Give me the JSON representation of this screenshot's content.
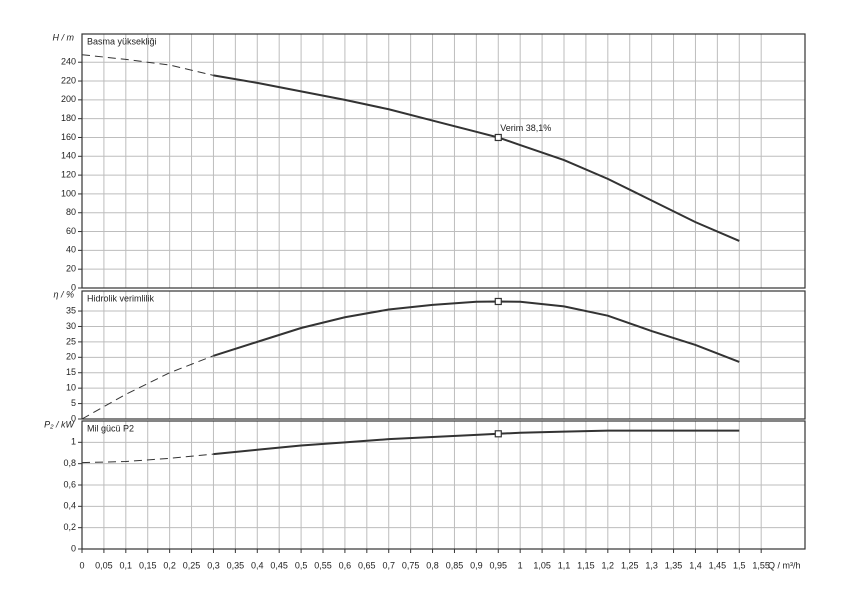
{
  "x_axis": {
    "label": "Q / m³/h",
    "xlim": [
      0,
      1.65
    ],
    "xticks": [
      0,
      {
        "value": 0.05,
        "label": "0,05"
      },
      {
        "value": 0.1,
        "label": "0,1"
      },
      {
        "value": 0.15,
        "label": "0,15"
      },
      {
        "value": 0.2,
        "label": "0,2"
      },
      {
        "value": 0.25,
        "label": "0,25"
      },
      {
        "value": 0.3,
        "label": "0,3"
      },
      {
        "value": 0.35,
        "label": "0,35"
      },
      {
        "value": 0.4,
        "label": "0,4"
      },
      {
        "value": 0.45,
        "label": "0,45"
      },
      {
        "value": 0.5,
        "label": "0,5"
      },
      {
        "value": 0.55,
        "label": "0,55"
      },
      {
        "value": 0.6,
        "label": "0,6"
      },
      {
        "value": 0.65,
        "label": "0,65"
      },
      {
        "value": 0.7,
        "label": "0,7"
      },
      {
        "value": 0.75,
        "label": "0,75"
      },
      {
        "value": 0.8,
        "label": "0,8"
      },
      {
        "value": 0.85,
        "label": "0,85"
      },
      {
        "value": 0.9,
        "label": "0,9"
      },
      {
        "value": 0.95,
        "label": "0,95"
      },
      1,
      {
        "value": 1.05,
        "label": "1,05"
      },
      {
        "value": 1.1,
        "label": "1,1"
      },
      {
        "value": 1.15,
        "label": "1,15"
      },
      {
        "value": 1.2,
        "label": "1,2"
      },
      {
        "value": 1.25,
        "label": "1,25"
      },
      {
        "value": 1.3,
        "label": "1,3"
      },
      {
        "value": 1.35,
        "label": "1,35"
      },
      {
        "value": 1.4,
        "label": "1,4"
      },
      {
        "value": 1.45,
        "label": "1,45"
      },
      {
        "value": 1.5,
        "label": "1,5"
      },
      {
        "value": 1.55,
        "label": "1,55"
      }
    ]
  },
  "operating_point_q": 0.95,
  "chart_data": [
    {
      "type": "line",
      "ylabel": "H / m",
      "title": "Basma yüksekliği",
      "annotation": "Verim  38,1%",
      "ylim": [
        0,
        270
      ],
      "yticks": [
        0,
        20,
        40,
        60,
        80,
        100,
        120,
        140,
        160,
        180,
        200,
        220,
        240
      ],
      "grid": true,
      "color": "#333333",
      "segments": [
        {
          "style": "dashed",
          "x": [
            0,
            0.1,
            0.2,
            0.3
          ],
          "values": [
            248,
            243,
            237,
            226
          ]
        },
        {
          "style": "solid",
          "x": [
            0.3,
            0.4,
            0.5,
            0.6,
            0.7,
            0.8,
            0.9,
            0.95,
            1.0,
            1.1,
            1.2,
            1.3,
            1.4,
            1.5
          ],
          "values": [
            226,
            218,
            209,
            200,
            190,
            178,
            166,
            160,
            152,
            136,
            116,
            93,
            70,
            50
          ]
        }
      ]
    },
    {
      "type": "line",
      "ylabel": "η / %",
      "title": "Hidrolik verimlilik",
      "ylim": [
        0,
        41.5
      ],
      "yticks": [
        0,
        5,
        10,
        15,
        20,
        25,
        30,
        35
      ],
      "grid": true,
      "color": "#333333",
      "segments": [
        {
          "style": "dashed",
          "x": [
            0,
            0.1,
            0.2,
            0.3
          ],
          "values": [
            0,
            8,
            15,
            20.5
          ]
        },
        {
          "style": "solid",
          "x": [
            0.3,
            0.4,
            0.5,
            0.6,
            0.7,
            0.8,
            0.9,
            0.95,
            1.0,
            1.1,
            1.2,
            1.3,
            1.4,
            1.5
          ],
          "values": [
            20.5,
            25,
            29.5,
            33,
            35.5,
            37,
            38,
            38.1,
            38,
            36.5,
            33.5,
            28.5,
            24,
            18.5
          ]
        }
      ]
    },
    {
      "type": "line",
      "ylabel": "P₂ / kW",
      "title": "Mil gücü P2",
      "ylim": [
        0,
        1.2
      ],
      "yticks": [
        0,
        {
          "value": 0.2,
          "label": "0,2"
        },
        {
          "value": 0.4,
          "label": "0,4"
        },
        {
          "value": 0.6,
          "label": "0,6"
        },
        {
          "value": 0.8,
          "label": "0,8"
        },
        1
      ],
      "grid": true,
      "color": "#333333",
      "segments": [
        {
          "style": "dashed",
          "x": [
            0,
            0.1,
            0.2,
            0.3
          ],
          "values": [
            0.81,
            0.82,
            0.85,
            0.89
          ]
        },
        {
          "style": "solid",
          "x": [
            0.3,
            0.4,
            0.5,
            0.6,
            0.7,
            0.8,
            0.9,
            0.95,
            1.0,
            1.1,
            1.2,
            1.3,
            1.4,
            1.5
          ],
          "values": [
            0.89,
            0.93,
            0.97,
            1.0,
            1.03,
            1.05,
            1.07,
            1.08,
            1.09,
            1.1,
            1.11,
            1.11,
            1.11,
            1.11
          ]
        }
      ]
    }
  ]
}
